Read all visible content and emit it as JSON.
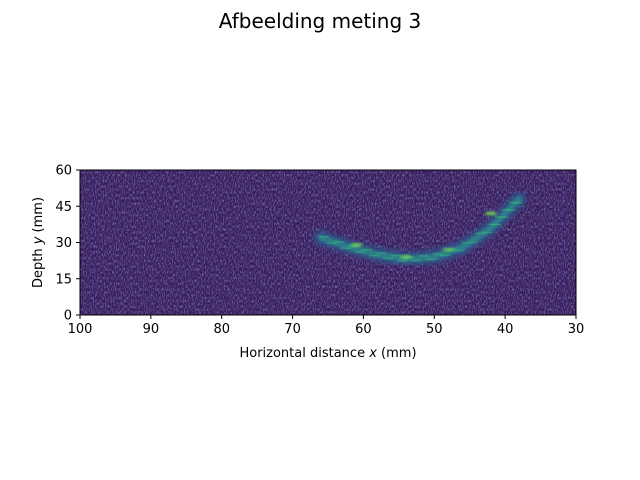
{
  "figure": {
    "title": "Afbeelding meting 3"
  },
  "chart_data": {
    "type": "heatmap",
    "title": "Afbeelding meting 3",
    "xlabel_prefix": "Horizontal distance ",
    "xlabel_var": "x",
    "xlabel_unit": "(mm)",
    "ylabel_prefix": "Depth ",
    "ylabel_var": "y",
    "ylabel_unit": "(mm)",
    "xlim": [
      100,
      30
    ],
    "ylim": [
      0,
      60
    ],
    "x_inverted": true,
    "xticks": [
      100,
      90,
      80,
      70,
      60,
      50,
      40,
      30
    ],
    "yticks": [
      0,
      15,
      30,
      45,
      60
    ],
    "xtick_labels": [
      "100",
      "90",
      "80",
      "70",
      "60",
      "50",
      "40",
      "30"
    ],
    "ytick_labels": [
      "0",
      "15",
      "30",
      "45",
      "60"
    ],
    "colormap": "viridis",
    "background_color": "#3b1d5f",
    "grid": false,
    "legend": false,
    "feature": {
      "description": "bright curved reflector band",
      "path": [
        {
          "x": 66,
          "y": 32
        },
        {
          "x": 62,
          "y": 28
        },
        {
          "x": 58,
          "y": 25
        },
        {
          "x": 54,
          "y": 23
        },
        {
          "x": 50,
          "y": 24
        },
        {
          "x": 46,
          "y": 28
        },
        {
          "x": 42,
          "y": 36
        },
        {
          "x": 40,
          "y": 42
        },
        {
          "x": 38,
          "y": 48
        }
      ],
      "hotspots": [
        {
          "x": 61,
          "y": 29,
          "intensity": 0.9
        },
        {
          "x": 54,
          "y": 24,
          "intensity": 0.85
        },
        {
          "x": 48,
          "y": 27,
          "intensity": 0.7
        },
        {
          "x": 42,
          "y": 42,
          "intensity": 0.9
        }
      ]
    }
  }
}
